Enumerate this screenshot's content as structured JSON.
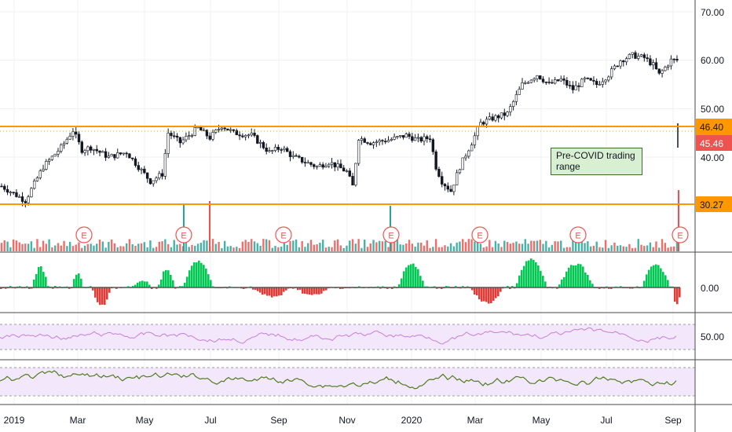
{
  "chart_data": {
    "type": "candlestick",
    "price_axis": {
      "labels": [
        "70.00",
        "60.00",
        "50.00",
        "40.00"
      ],
      "values": [
        70,
        60,
        50,
        40
      ]
    },
    "macd_axis": {
      "labels": [
        "0.00"
      ]
    },
    "rsi_axis": {
      "labels": [
        "50.00"
      ]
    },
    "x_axis": {
      "labels": [
        "2019",
        "Mar",
        "May",
        "Jul",
        "Sep",
        "Nov",
        "2020",
        "Mar",
        "May",
        "Jul",
        "Sep"
      ]
    },
    "horizontal_levels": [
      {
        "value": 46.4,
        "label": "46.40",
        "color": "#ff9800"
      },
      {
        "value": 30.27,
        "label": "30.27",
        "color": "#ff9800"
      }
    ],
    "last_price": {
      "value": 45.46,
      "label": "45.46",
      "color": "#ef5350"
    },
    "annotation": {
      "text": "Pre-COVID trading range"
    },
    "earnings_marker": "E",
    "earnings_count": 7,
    "price_path": [
      [
        0,
        34
      ],
      [
        8,
        31
      ],
      [
        14,
        38
      ],
      [
        20,
        42
      ],
      [
        24,
        45.5
      ],
      [
        27,
        41.5
      ],
      [
        30,
        42
      ],
      [
        36,
        40
      ],
      [
        42,
        41
      ],
      [
        46,
        38
      ],
      [
        50,
        35
      ],
      [
        54,
        36.5
      ],
      [
        56,
        45
      ],
      [
        60,
        43
      ],
      [
        66,
        46
      ],
      [
        70,
        44
      ],
      [
        74,
        46.5
      ],
      [
        78,
        45
      ],
      [
        84,
        44.5
      ],
      [
        90,
        41
      ],
      [
        94,
        42
      ],
      [
        98,
        40
      ],
      [
        102,
        39
      ],
      [
        106,
        38
      ],
      [
        110,
        39
      ],
      [
        113,
        38
      ],
      [
        116,
        37
      ],
      [
        118,
        34
      ],
      [
        120,
        44
      ],
      [
        124,
        43
      ],
      [
        130,
        43.5
      ],
      [
        136,
        44.5
      ],
      [
        140,
        43.5
      ],
      [
        144,
        44
      ],
      [
        146,
        38
      ],
      [
        148,
        35
      ],
      [
        151,
        33
      ],
      [
        154,
        38
      ],
      [
        158,
        43
      ],
      [
        161,
        47
      ],
      [
        165,
        48
      ],
      [
        170,
        49
      ],
      [
        175,
        55
      ],
      [
        180,
        57
      ],
      [
        184,
        55
      ],
      [
        188,
        56
      ],
      [
        192,
        54
      ],
      [
        196,
        56
      ],
      [
        200,
        55
      ],
      [
        204,
        57
      ],
      [
        208,
        60
      ],
      [
        212,
        61
      ],
      [
        216,
        60.5
      ],
      [
        219,
        59
      ],
      [
        221,
        57
      ],
      [
        223,
        58.5
      ],
      [
        225,
        60
      ]
    ]
  }
}
